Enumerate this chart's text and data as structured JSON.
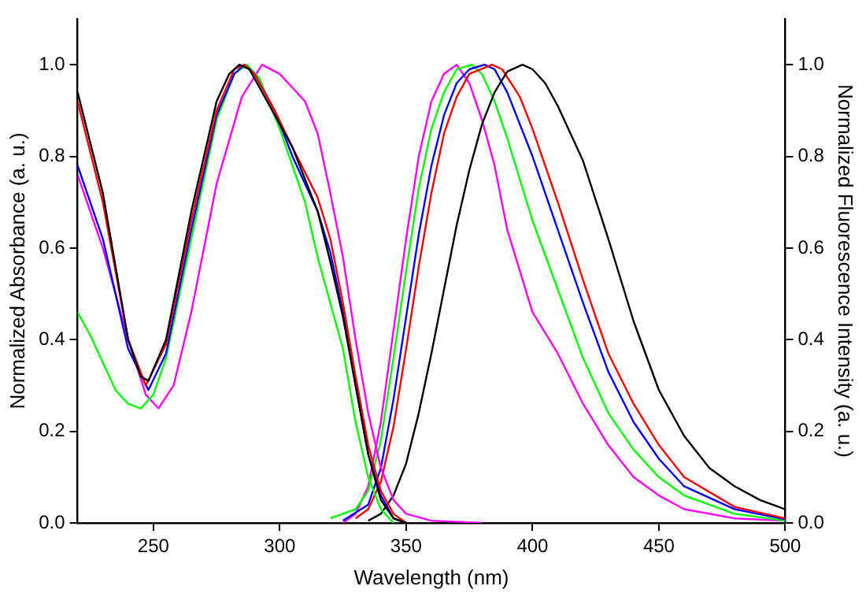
{
  "chart_data": {
    "type": "line",
    "xlabel": "Wavelength (nm)",
    "ylabel": "Normalized Absorbance (a. u.)",
    "y2label": "Normalized Fluorescence Intensity (a. u.)",
    "xlim": [
      220,
      500
    ],
    "xticks": [
      250,
      300,
      350,
      400,
      450,
      500
    ],
    "ylim": [
      0,
      1.1
    ],
    "yticks": [
      {
        "value": 0,
        "label": "0.0"
      },
      {
        "value": 0.2,
        "label": "0.2"
      },
      {
        "value": 0.4,
        "label": "0.4"
      },
      {
        "value": 0.6,
        "label": "0.6"
      },
      {
        "value": 0.8,
        "label": "0.8"
      },
      {
        "value": 1,
        "label": "1.0"
      }
    ],
    "y2lim": [
      0,
      1.1
    ],
    "y2ticks": [
      {
        "value": 0,
        "label": "0.0"
      },
      {
        "value": 0.2,
        "label": "0.2"
      },
      {
        "value": 0.4,
        "label": "0.4"
      },
      {
        "value": 0.6,
        "label": "0.6"
      },
      {
        "value": 0.8,
        "label": "0.8"
      },
      {
        "value": 1,
        "label": "1.0"
      }
    ],
    "grid": false,
    "legend": false,
    "marker": "none",
    "line_style": "solid",
    "series": [
      {
        "color": "#000000",
        "x": [
          220,
          230,
          240,
          245,
          248,
          255,
          265,
          275,
          280,
          284,
          288,
          295,
          305,
          315,
          320,
          325,
          330,
          335,
          340,
          345,
          350
        ],
        "values": [
          0.94,
          0.72,
          0.4,
          0.32,
          0.31,
          0.4,
          0.68,
          0.92,
          0.98,
          1.0,
          0.99,
          0.92,
          0.82,
          0.68,
          0.57,
          0.45,
          0.3,
          0.15,
          0.05,
          0.01,
          0
        ]
      },
      {
        "color": "#ff0000",
        "x": [
          220,
          230,
          240,
          247,
          255,
          265,
          275,
          282,
          286,
          290,
          298,
          305,
          315,
          320,
          325,
          330,
          335,
          340,
          345,
          350
        ],
        "values": [
          0.92,
          0.7,
          0.4,
          0.3,
          0.39,
          0.66,
          0.9,
          0.99,
          1.0,
          0.98,
          0.9,
          0.82,
          0.71,
          0.62,
          0.48,
          0.32,
          0.17,
          0.07,
          0.02,
          0
        ]
      },
      {
        "color": "#0000ff",
        "x": [
          220,
          230,
          240,
          248,
          255,
          265,
          275,
          282,
          286,
          290,
          298,
          305,
          315,
          320,
          325,
          330,
          335,
          340,
          345,
          350
        ],
        "values": [
          0.78,
          0.62,
          0.38,
          0.29,
          0.37,
          0.64,
          0.89,
          0.98,
          1.0,
          0.98,
          0.9,
          0.8,
          0.68,
          0.59,
          0.46,
          0.3,
          0.15,
          0.06,
          0.01,
          0
        ]
      },
      {
        "color": "#00ff00",
        "x": [
          220,
          225,
          230,
          235,
          240,
          245,
          250,
          255,
          265,
          275,
          282,
          287,
          292,
          300,
          305,
          310,
          315,
          320,
          325,
          330,
          335,
          340,
          345
        ],
        "values": [
          0.46,
          0.41,
          0.35,
          0.29,
          0.26,
          0.25,
          0.28,
          0.36,
          0.62,
          0.88,
          0.98,
          1.0,
          0.97,
          0.86,
          0.78,
          0.7,
          0.58,
          0.48,
          0.38,
          0.22,
          0.1,
          0.03,
          0
        ]
      },
      {
        "color": "#ff00ff",
        "x": [
          220,
          230,
          240,
          247,
          252,
          258,
          265,
          275,
          285,
          293,
          300,
          305,
          310,
          315,
          320,
          325,
          330,
          335,
          340,
          345,
          350,
          360,
          380
        ],
        "values": [
          0.76,
          0.6,
          0.4,
          0.28,
          0.25,
          0.3,
          0.46,
          0.74,
          0.93,
          1.0,
          0.98,
          0.95,
          0.92,
          0.85,
          0.72,
          0.58,
          0.4,
          0.24,
          0.12,
          0.05,
          0.02,
          0.005,
          0
        ]
      },
      {
        "axis": "y2",
        "color": "#000000",
        "x": [
          335,
          340,
          345,
          350,
          355,
          360,
          365,
          370,
          375,
          380,
          385,
          390,
          396,
          400,
          405,
          410,
          420,
          430,
          440,
          450,
          460,
          470,
          480,
          490,
          500
        ],
        "values": [
          0.005,
          0.02,
          0.06,
          0.13,
          0.24,
          0.37,
          0.51,
          0.65,
          0.77,
          0.87,
          0.94,
          0.985,
          1.0,
          0.99,
          0.96,
          0.91,
          0.79,
          0.62,
          0.44,
          0.29,
          0.19,
          0.12,
          0.08,
          0.05,
          0.03
        ]
      },
      {
        "axis": "y2",
        "color": "#ff0000",
        "x": [
          330,
          335,
          340,
          345,
          350,
          355,
          360,
          365,
          370,
          375,
          384,
          388,
          395,
          400,
          410,
          420,
          430,
          440,
          450,
          460,
          480,
          500
        ],
        "values": [
          0.01,
          0.03,
          0.09,
          0.21,
          0.38,
          0.56,
          0.72,
          0.85,
          0.93,
          0.98,
          1.0,
          0.99,
          0.93,
          0.86,
          0.7,
          0.53,
          0.37,
          0.26,
          0.17,
          0.1,
          0.035,
          0.01
        ]
      },
      {
        "axis": "y2",
        "color": "#0000ff",
        "x": [
          325,
          335,
          340,
          345,
          350,
          355,
          360,
          365,
          370,
          375,
          381,
          385,
          390,
          400,
          410,
          420,
          430,
          440,
          450,
          460,
          480,
          500
        ],
        "values": [
          0.005,
          0.04,
          0.12,
          0.27,
          0.45,
          0.63,
          0.78,
          0.89,
          0.96,
          0.99,
          1.0,
          0.99,
          0.94,
          0.8,
          0.64,
          0.48,
          0.33,
          0.22,
          0.14,
          0.08,
          0.03,
          0.008
        ]
      },
      {
        "axis": "y2",
        "color": "#00ff00",
        "x": [
          320,
          330,
          335,
          340,
          345,
          350,
          355,
          360,
          365,
          370,
          376,
          380,
          385,
          390,
          400,
          410,
          420,
          430,
          440,
          450,
          460,
          480,
          500
        ],
        "values": [
          0.01,
          0.03,
          0.07,
          0.18,
          0.36,
          0.55,
          0.73,
          0.86,
          0.94,
          0.99,
          1.0,
          0.98,
          0.92,
          0.84,
          0.66,
          0.51,
          0.36,
          0.24,
          0.16,
          0.1,
          0.06,
          0.02,
          0.005
        ]
      },
      {
        "axis": "y2",
        "color": "#ff00ff",
        "x": [
          325,
          330,
          335,
          340,
          345,
          350,
          355,
          360,
          365,
          370,
          375,
          380,
          385,
          390,
          400,
          410,
          420,
          430,
          440,
          450,
          460,
          480,
          500
        ],
        "values": [
          0,
          0.02,
          0.08,
          0.22,
          0.42,
          0.62,
          0.8,
          0.92,
          0.98,
          1.0,
          0.96,
          0.88,
          0.78,
          0.64,
          0.46,
          0.37,
          0.26,
          0.17,
          0.1,
          0.06,
          0.03,
          0.01,
          0.005
        ]
      }
    ]
  }
}
